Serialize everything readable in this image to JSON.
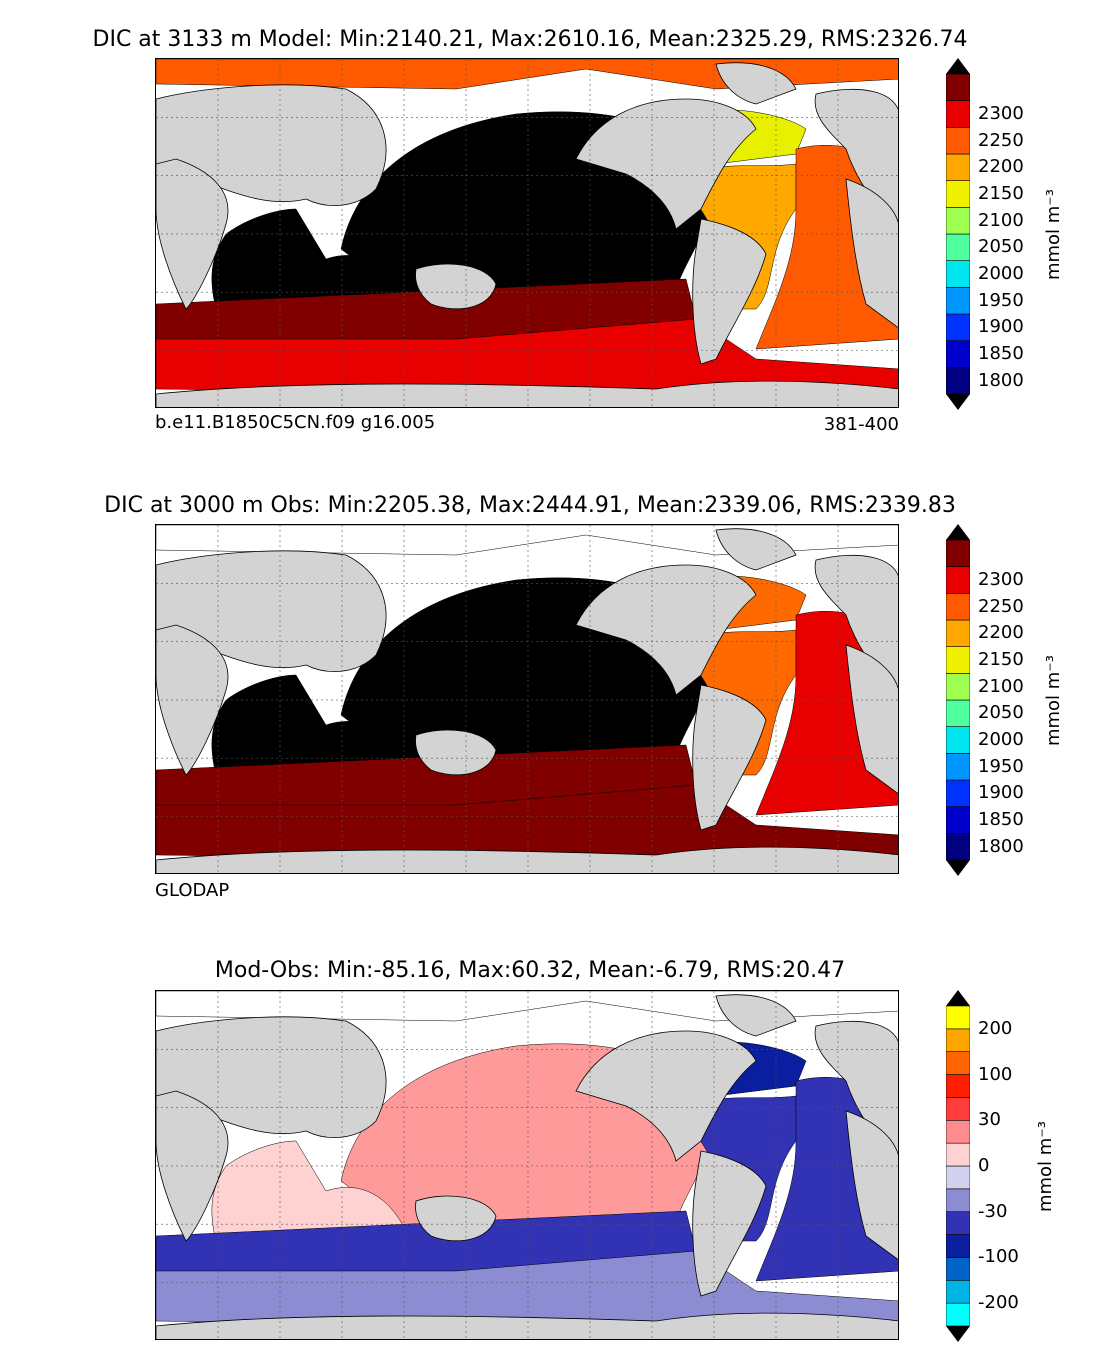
{
  "panels": [
    {
      "id": "model",
      "title": "DIC at 3133 m Model: Min:2140.21, Max:2610.16, Mean:2325.29, RMS:2326.74",
      "footer_left": "b.e11.B1850C5CN.f09 g16.005",
      "footer_right": "381-400",
      "colorbar_label": "mmol m⁻³",
      "colorbar_ticks": [
        "1800",
        "1850",
        "1900",
        "1950",
        "2000",
        "2050",
        "2100",
        "2150",
        "2200",
        "2250",
        "2300"
      ],
      "colorbar_colors": [
        "#000080",
        "#0000cd",
        "#0032ff",
        "#0096ff",
        "#00e5f0",
        "#50ff9f",
        "#9fff50",
        "#f0f000",
        "#ffa800",
        "#ff5a00",
        "#e80000",
        "#800000"
      ],
      "regions": {
        "pacific": "#000000",
        "indian": "#000000",
        "southern_ocean_north": "#800000",
        "southern_ocean_south": "#e80000",
        "north_atlantic": "#e8f000",
        "atlantic_west": "#ffa800",
        "atlantic_east": "#ff5a00",
        "arctic": "#ff5a00"
      }
    },
    {
      "id": "obs",
      "title": "DIC at 3000 m Obs: Min:2205.38, Max:2444.91, Mean:2339.06, RMS:2339.83",
      "footer_left": "GLODAP",
      "footer_right": "",
      "colorbar_label": "mmol m⁻³",
      "colorbar_ticks": [
        "1800",
        "1850",
        "1900",
        "1950",
        "2000",
        "2050",
        "2100",
        "2150",
        "2200",
        "2250",
        "2300"
      ],
      "colorbar_colors": [
        "#000080",
        "#0000cd",
        "#0032ff",
        "#0096ff",
        "#00e5f0",
        "#50ff9f",
        "#9fff50",
        "#f0f000",
        "#ffa800",
        "#ff5a00",
        "#e80000",
        "#800000"
      ],
      "regions": {
        "pacific": "#000000",
        "indian": "#000000",
        "southern_ocean_north": "#800000",
        "southern_ocean_south": "#800000",
        "north_atlantic": "#ff6a00",
        "atlantic_west": "#ff6a00",
        "atlantic_east": "#e80000",
        "arctic": "#ffffff"
      }
    },
    {
      "id": "diff",
      "title": "Mod-Obs: Min:-85.16, Max:60.32, Mean:-6.79, RMS:20.47",
      "footer_left": "",
      "footer_right": "",
      "colorbar_label": "mmol m⁻³",
      "colorbar_ticks": [
        "-200",
        "-100",
        "-30",
        "0",
        "30",
        "100",
        "200"
      ],
      "colorbar_colors": [
        "#00ffff",
        "#00b4e6",
        "#0064c8",
        "#0a1ea0",
        "#3232b4",
        "#8c8cd2",
        "#d2d2f0",
        "#ffd2d2",
        "#ff8c8c",
        "#ff3c3c",
        "#ff1e00",
        "#ff6400",
        "#ffa500",
        "#ffff00"
      ],
      "regions": {
        "pacific": "#ff9a9a",
        "indian": "#ffd2d2",
        "southern_ocean_north": "#3232b4",
        "southern_ocean_south": "#8c8cd2",
        "north_atlantic": "#0a1ea0",
        "atlantic_west": "#3232b4",
        "atlantic_east": "#3232b4",
        "arctic": "#ffffff"
      }
    }
  ]
}
